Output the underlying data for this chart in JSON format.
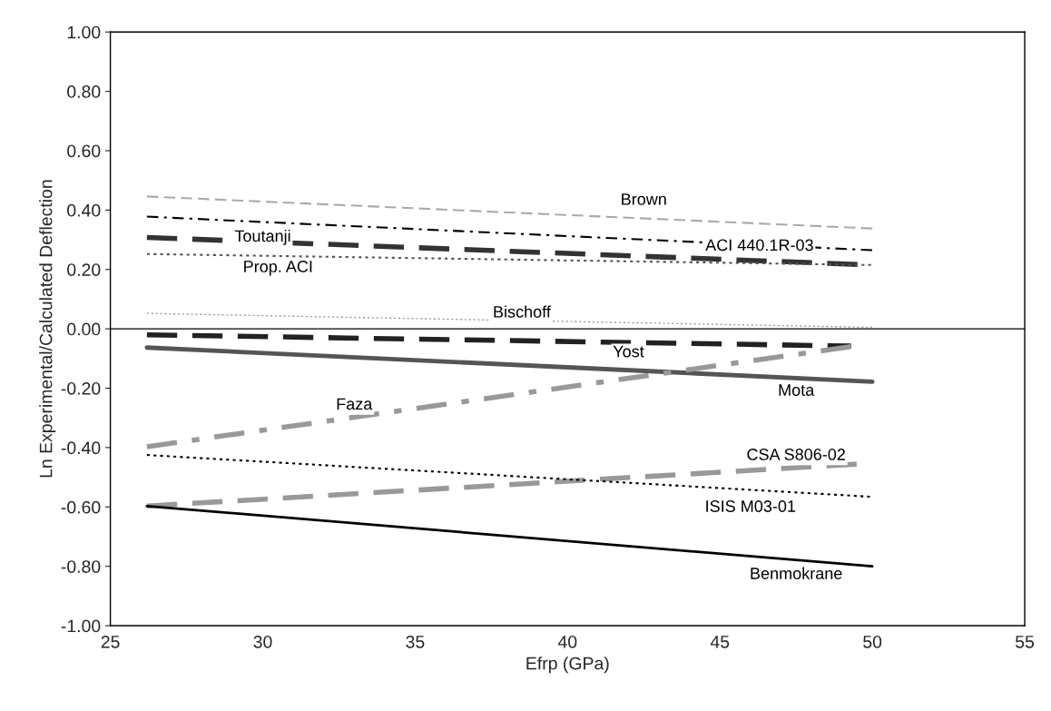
{
  "chart_data": {
    "type": "line",
    "xlabel": "Efrp (GPa)",
    "ylabel": "Ln Experimental/Calculated Deflection",
    "xlim": [
      25,
      55
    ],
    "xticks": [
      25,
      30,
      35,
      40,
      45,
      50,
      55
    ],
    "ylim": [
      -1.0,
      1.0
    ],
    "yticks": [
      {
        "value": -1.0,
        "label": "-1.00"
      },
      {
        "value": -0.8,
        "label": "-0.80"
      },
      {
        "value": -0.6,
        "label": "-0.60"
      },
      {
        "value": -0.4,
        "label": "-0.40"
      },
      {
        "value": -0.2,
        "label": "-0.20"
      },
      {
        "value": 0.0,
        "label": "0.00"
      },
      {
        "value": 0.2,
        "label": "0.20"
      },
      {
        "value": 0.4,
        "label": "0.40"
      },
      {
        "value": 0.6,
        "label": "0.60"
      },
      {
        "value": 0.8,
        "label": "0.80"
      },
      {
        "value": 1.0,
        "label": "1.00"
      }
    ],
    "grid": false,
    "legend": false,
    "marker": "none",
    "ref_lines": [
      {
        "axis": "y",
        "value": 0.0,
        "color": "#000000"
      }
    ],
    "series": [
      {
        "name": "Brown",
        "color": "#aaaaaa",
        "line_style": "dashed",
        "x": [
          26.2,
          50
        ],
        "values": [
          0.446,
          0.338
        ]
      },
      {
        "name": "ACI 440.1R-03",
        "color": "#000000",
        "line_style": "dashdot",
        "x": [
          26.2,
          50
        ],
        "values": [
          0.378,
          0.265
        ]
      },
      {
        "name": "Toutanji",
        "color": "#333333",
        "line_style": "dashed",
        "x": [
          26.2,
          50
        ],
        "values": [
          0.308,
          0.215
        ]
      },
      {
        "name": "Prop. ACI",
        "color": "#555555",
        "line_style": "dotted",
        "x": [
          26.2,
          50
        ],
        "values": [
          0.252,
          0.215
        ]
      },
      {
        "name": "Bischoff",
        "color": "#999999",
        "line_style": "dotted",
        "x": [
          26.2,
          50
        ],
        "values": [
          0.052,
          0.005
        ]
      },
      {
        "name": "Yost",
        "color": "#222222",
        "line_style": "dashed",
        "x": [
          26.2,
          49.3
        ],
        "values": [
          -0.02,
          -0.058
        ]
      },
      {
        "name": "Mota",
        "color": "#555555",
        "line_style": "solid",
        "x": [
          26.2,
          50
        ],
        "values": [
          -0.063,
          -0.178
        ]
      },
      {
        "name": "Faza",
        "color": "#999999",
        "line_style": "dashdot",
        "x": [
          26.2,
          49.3
        ],
        "values": [
          -0.397,
          -0.06
        ]
      },
      {
        "name": "CSA S806-02",
        "color": "#999999",
        "line_style": "dashed",
        "x": [
          26.2,
          49.6
        ],
        "values": [
          -0.597,
          -0.455
        ]
      },
      {
        "name": "ISIS M03-01",
        "color": "#000000",
        "line_style": "dotted",
        "x": [
          26.2,
          50
        ],
        "values": [
          -0.425,
          -0.566
        ]
      },
      {
        "name": "Benmokrane",
        "color": "#000000",
        "line_style": "solid",
        "x": [
          26.2,
          50
        ],
        "values": [
          -0.597,
          -0.8
        ]
      }
    ]
  }
}
